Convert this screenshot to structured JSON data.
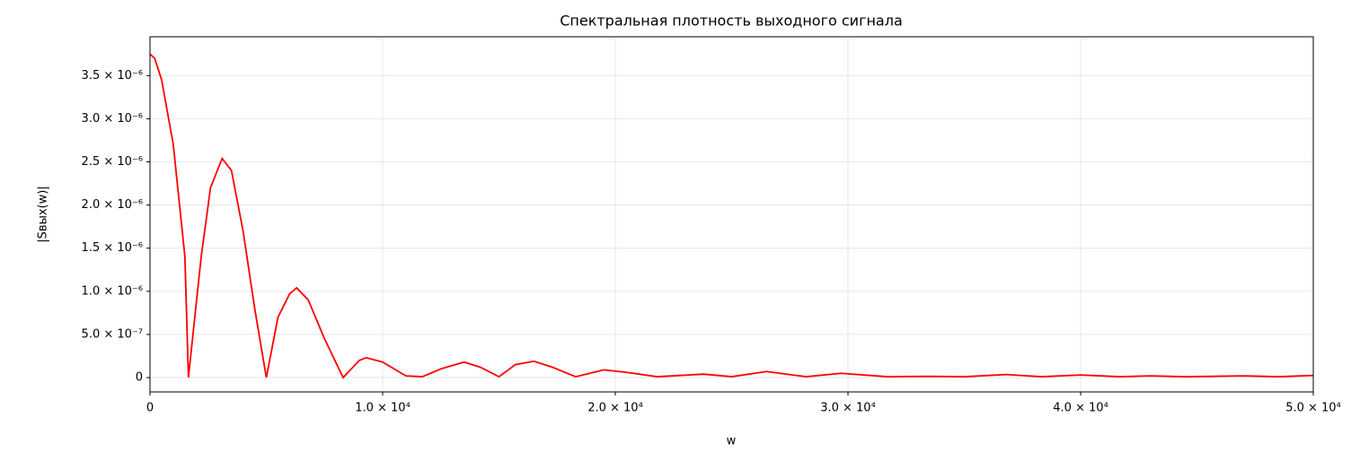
{
  "chart_data": {
    "type": "line",
    "title": "Спектральная плотность выходного сигнала",
    "xlabel": "w",
    "ylabel": "|Sвых(w)|",
    "grid": true,
    "xlim": [
      0,
      50000
    ],
    "ylim": [
      -1.66e-07,
      3.95e-06
    ],
    "xticks": [
      0,
      {
        "value": 10000,
        "label": "1.0 × 10⁴"
      },
      {
        "value": 20000,
        "label": "2.0 × 10⁴"
      },
      {
        "value": 30000,
        "label": "3.0 × 10⁴"
      },
      {
        "value": 40000,
        "label": "4.0 × 10⁴"
      },
      {
        "value": 50000,
        "label": "5.0 × 10⁴"
      }
    ],
    "yticks": [
      0,
      {
        "value": 5e-07,
        "label": "5.0 × 10⁻⁷"
      },
      {
        "value": 1e-06,
        "label": "1.0 × 10⁻⁶"
      },
      {
        "value": 1.5e-06,
        "label": "1.5 × 10⁻⁶"
      },
      {
        "value": 2e-06,
        "label": "2.0 × 10⁻⁶"
      },
      {
        "value": 2.5e-06,
        "label": "2.5 × 10⁻⁶"
      },
      {
        "value": 3e-06,
        "label": "3.0 × 10⁻⁶"
      },
      {
        "value": 3.5e-06,
        "label": "3.5 × 10⁻⁶"
      }
    ],
    "series": [
      {
        "color": "#ff0000",
        "x": [
          0,
          200,
          500,
          1000,
          1500,
          1650,
          2200,
          2600,
          3100,
          3500,
          4000,
          4500,
          5000,
          5500,
          6000,
          6300,
          6800,
          7500,
          8300,
          9000,
          9300,
          10000,
          11000,
          11700,
          12500,
          13500,
          14200,
          15000,
          15700,
          16500,
          17300,
          18300,
          19500,
          20500,
          21800,
          23800,
          25000,
          26500,
          28200,
          29700,
          31700,
          33500,
          35000,
          36800,
          38300,
          40000,
          41700,
          43000,
          44500,
          47000,
          48500,
          50000
        ],
        "values": [
          3.75e-06,
          3.7e-06,
          3.45e-06,
          2.7e-06,
          1.4e-06,
          0,
          1.4e-06,
          2.2e-06,
          2.54e-06,
          2.4e-06,
          1.7e-06,
          8e-07,
          0,
          7e-07,
          9.7e-07,
          1.04e-06,
          9e-07,
          4.5e-07,
          0,
          2e-07,
          2.3e-07,
          1.8e-07,
          2e-08,
          1e-08,
          1e-07,
          1.8e-07,
          1.2e-07,
          1e-08,
          1.5e-07,
          1.9e-07,
          1.2e-07,
          1e-08,
          9e-08,
          6e-08,
          1e-08,
          4e-08,
          1e-08,
          7e-08,
          1e-08,
          5e-08,
          1e-08,
          1.5e-08,
          1e-08,
          3.5e-08,
          1e-08,
          3e-08,
          1e-08,
          2e-08,
          1e-08,
          2e-08,
          1e-08,
          2.5e-08
        ]
      }
    ]
  }
}
